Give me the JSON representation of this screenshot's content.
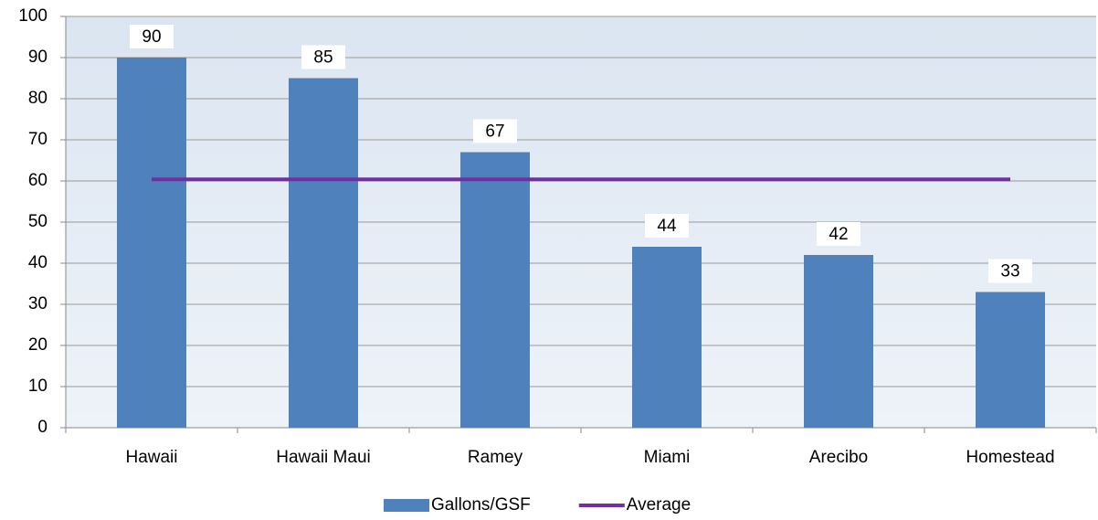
{
  "chart_data": {
    "type": "bar",
    "categories": [
      "Hawaii",
      "Hawaii Maui",
      "Ramey",
      "Miami",
      "Arecibo",
      "Homestead"
    ],
    "series": [
      {
        "name": "Gallons/GSF",
        "color": "#4f81bd",
        "values": [
          90,
          85,
          67,
          44,
          42,
          33
        ]
      },
      {
        "name": "Average",
        "color": "#7030a0",
        "type": "line",
        "values": [
          60.4,
          60.4,
          60.4,
          60.4,
          60.4,
          60.4
        ]
      }
    ],
    "ylim": [
      0,
      100
    ],
    "yticks": [
      0,
      10,
      20,
      30,
      40,
      50,
      60,
      70,
      80,
      90,
      100
    ],
    "grid": true,
    "legend": "bottom"
  }
}
